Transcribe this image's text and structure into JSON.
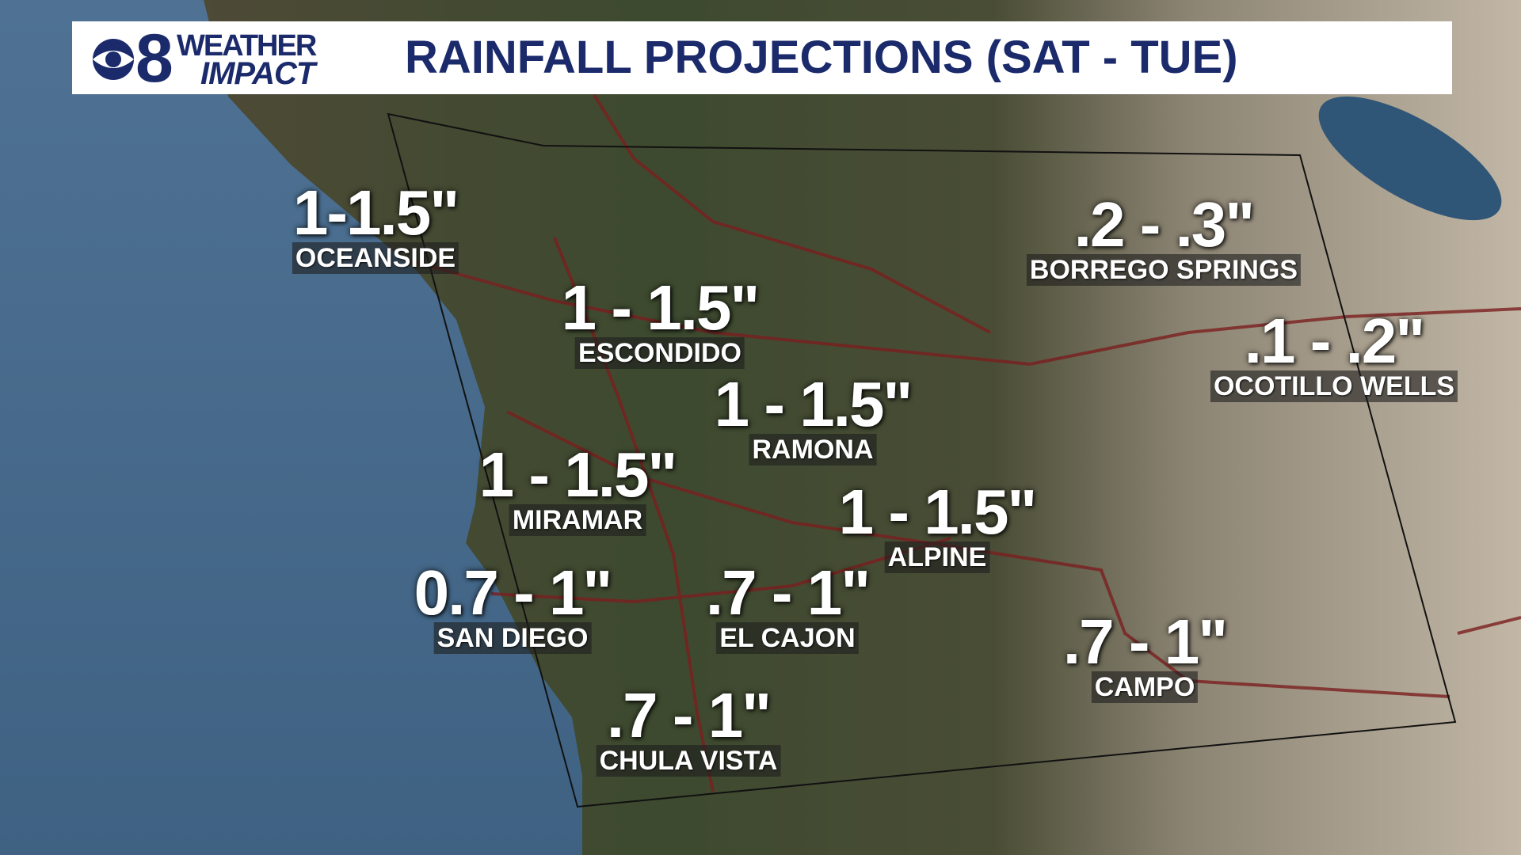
{
  "header": {
    "logo": {
      "channel": "8",
      "line1": "WEATHER",
      "line2": "IMPACT"
    },
    "title": "RAINFALL PROJECTIONS (SAT - TUE)"
  },
  "locations": [
    {
      "amount": "1-1.5\"",
      "name": "OCEANSIDE"
    },
    {
      "amount": "1 - 1.5\"",
      "name": "ESCONDIDO"
    },
    {
      "amount": "1 - 1.5\"",
      "name": "RAMONA"
    },
    {
      "amount": "1 - 1.5\"",
      "name": "MIRAMAR"
    },
    {
      "amount": "1 - 1.5\"",
      "name": "ALPINE"
    },
    {
      "amount": "0.7 - 1\"",
      "name": "SAN DIEGO"
    },
    {
      "amount": ".7 - 1\"",
      "name": "EL CAJON"
    },
    {
      "amount": ".7 - 1\"",
      "name": "CHULA VISTA"
    },
    {
      "amount": ".7 - 1\"",
      "name": "CAMPO"
    },
    {
      "amount": ".2 - .3\"",
      "name": "BORREGO SPRINGS"
    },
    {
      "amount": ".1 - .2\"",
      "name": "OCOTILLO WELLS"
    }
  ]
}
